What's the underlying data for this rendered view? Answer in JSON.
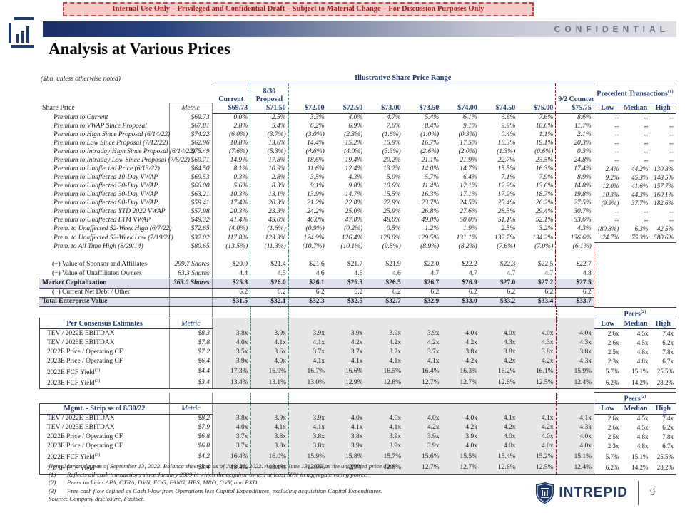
{
  "banner": {
    "text": "Internal Use Only – Privileged and Confidential Draft – Subject to Material Change – For Discussion Purposes Only"
  },
  "header": {
    "confidential": "CONFIDENTIAL",
    "title": "Analysis at Various Prices"
  },
  "colors": {
    "navy": "#203a6b",
    "green_dash": "#2e9d77",
    "red_dash": "#c00000",
    "banner_bg": "#f8caca",
    "banner_text": "#9e1b1b",
    "total_row_bg": "#dee1ed",
    "section_bg": "#e7e7e9"
  },
  "table": {
    "units_note": "($bn, unless otherwise noted)",
    "range_title": "Illustrative Share Price Range",
    "headers": {
      "current": "Current",
      "proposal_l1": "8/30",
      "proposal_l2": "Proposal",
      "counter": "9/2 Counter",
      "precedent": "Precedent Transactions",
      "precedent_sup": "(1)",
      "peers": "Peers",
      "peers_sup": "(2)",
      "low": "Low",
      "median": "Median",
      "high": "High",
      "metric": "Metric",
      "share_price_label": "Share Price"
    },
    "prices": [
      "$69.73",
      "$71.50",
      "$72.00",
      "$72.50",
      "$73.00",
      "$73.50",
      "$74.00",
      "$74.50",
      "$75.00",
      "$75.75"
    ],
    "premium_rows": [
      {
        "label": "Premium to Current",
        "metric": "$69.73",
        "values": [
          "0.0%",
          "2.5%",
          "3.3%",
          "4.0%",
          "4.7%",
          "5.4%",
          "6.1%",
          "6.8%",
          "7.6%",
          "8.6%"
        ],
        "peers": [
          "--",
          "--",
          "--"
        ]
      },
      {
        "label": "Premium to VWAP Since Proposal",
        "metric": "$67.81",
        "values": [
          "2.8%",
          "5.4%",
          "6.2%",
          "6.9%",
          "7.6%",
          "8.4%",
          "9.1%",
          "9.9%",
          "10.6%",
          "11.7%"
        ],
        "peers": [
          "--",
          "--",
          "--"
        ]
      },
      {
        "label": "Premium to High Since Proposal (6/14/22)",
        "metric": "$74.22",
        "values": [
          "(6.0%)",
          "(3.7%)",
          "(3.0%)",
          "(2.3%)",
          "(1.6%)",
          "(1.0%)",
          "(0.3%)",
          "0.4%",
          "1.1%",
          "2.1%"
        ],
        "peers": [
          "--",
          "--",
          "--"
        ]
      },
      {
        "label": "Premium to Low Since Proposal (7/12/22)",
        "metric": "$62.96",
        "values": [
          "10.8%",
          "13.6%",
          "14.4%",
          "15.2%",
          "15.9%",
          "16.7%",
          "17.5%",
          "18.3%",
          "19.1%",
          "20.3%"
        ],
        "peers": [
          "--",
          "--",
          "--"
        ]
      },
      {
        "label": "Premium to Intraday High Since Proposal (6/14/22)",
        "metric": "$75.49",
        "values": [
          "(7.6%)",
          "(5.3%)",
          "(4.6%)",
          "(4.0%)",
          "(3.3%)",
          "(2.6%)",
          "(2.0%)",
          "(1.3%)",
          "(0.6%)",
          "0.3%"
        ],
        "peers": [
          "--",
          "--",
          "--"
        ]
      },
      {
        "label": "Premium to Intraday Low Since Proposal (7/6/22)",
        "metric": "$60.71",
        "values": [
          "14.9%",
          "17.8%",
          "18.6%",
          "19.4%",
          "20.2%",
          "21.1%",
          "21.9%",
          "22.7%",
          "23.5%",
          "24.8%"
        ],
        "peers": [
          "--",
          "--",
          "--"
        ]
      },
      {
        "label": "Premium to Unaffected Price (6/13/22)",
        "metric": "$64.50",
        "values": [
          "8.1%",
          "10.9%",
          "11.6%",
          "12.4%",
          "13.2%",
          "14.0%",
          "14.7%",
          "15.5%",
          "16.3%",
          "17.4%"
        ],
        "peers": [
          "2.4%",
          "44.2%",
          "130.8%"
        ]
      },
      {
        "label": "Premium to Unaffected 10-Day VWAP",
        "metric": "$69.53",
        "values": [
          "0.3%",
          "2.8%",
          "3.5%",
          "4.3%",
          "5.0%",
          "5.7%",
          "6.4%",
          "7.1%",
          "7.9%",
          "8.9%"
        ],
        "peers": [
          "9.2%",
          "45.3%",
          "148.5%"
        ]
      },
      {
        "label": "Premium to Unaffected 20-Day VWAP",
        "metric": "$66.00",
        "values": [
          "5.6%",
          "8.3%",
          "9.1%",
          "9.8%",
          "10.6%",
          "11.4%",
          "12.1%",
          "12.9%",
          "13.6%",
          "14.8%"
        ],
        "peers": [
          "12.0%",
          "41.6%",
          "157.7%"
        ]
      },
      {
        "label": "Premium to Unaffected 30-Day VWAP",
        "metric": "$63.21",
        "values": [
          "10.3%",
          "13.1%",
          "13.9%",
          "14.7%",
          "15.5%",
          "16.3%",
          "17.1%",
          "17.9%",
          "18.7%",
          "19.8%"
        ],
        "peers": [
          "10.3%",
          "44.3%",
          "160.1%"
        ]
      },
      {
        "label": "Premium to Unaffected 90-Day VWAP",
        "metric": "$59.41",
        "values": [
          "17.4%",
          "20.3%",
          "21.2%",
          "22.0%",
          "22.9%",
          "23.7%",
          "24.5%",
          "25.4%",
          "26.2%",
          "27.5%"
        ],
        "peers": [
          "(9.9%)",
          "37.7%",
          "182.6%"
        ]
      },
      {
        "label": "Premium to Unaffected YTD 2022 VWAP",
        "metric": "$57.98",
        "values": [
          "20.3%",
          "23.3%",
          "24.2%",
          "25.0%",
          "25.9%",
          "26.8%",
          "27.6%",
          "28.5%",
          "29.4%",
          "30.7%"
        ],
        "peers": [
          "--",
          "--",
          "--"
        ]
      },
      {
        "label": "Premium to Unaffected LTM VWAP",
        "metric": "$49.32",
        "values": [
          "41.4%",
          "45.0%",
          "46.0%",
          "47.0%",
          "48.0%",
          "49.0%",
          "50.0%",
          "51.1%",
          "52.1%",
          "53.6%"
        ],
        "peers": [
          "--",
          "--",
          "--"
        ]
      },
      {
        "label": "Prem. to Unaffected 52-Week High (6/7/22)",
        "metric": "$72.65",
        "values": [
          "(4.0%)",
          "(1.6%)",
          "(0.9%)",
          "(0.2%)",
          "0.5%",
          "1.2%",
          "1.9%",
          "2.5%",
          "3.2%",
          "4.3%"
        ],
        "peers": [
          "(80.8%)",
          "6.3%",
          "42.5%"
        ]
      },
      {
        "label": "Prem. to Unaffected 52-Week Low (7/19/21)",
        "metric": "$32.02",
        "values": [
          "117.8%",
          "123.3%",
          "124.9%",
          "126.4%",
          "128.0%",
          "129.5%",
          "131.1%",
          "132.7%",
          "134.2%",
          "136.6%"
        ],
        "peers": [
          "24.7%",
          "75.3%",
          "580.6%"
        ]
      },
      {
        "label": "Prem. to All Time High (8/29/14)",
        "metric": "$80.65",
        "values": [
          "(13.5%)",
          "(11.3%)",
          "(10.7%)",
          "(10.1%)",
          "(9.5%)",
          "(8.9%)",
          "(8.2%)",
          "(7.6%)",
          "(7.0%)",
          "(6.1%)"
        ],
        "peers": [
          "",
          "",
          ""
        ]
      }
    ],
    "value_rows": [
      {
        "label": "(+) Value of Sponsor and Affiliates",
        "metric": "299.7 Shares",
        "values": [
          "$20.9",
          "$21.4",
          "$21.6",
          "$21.7",
          "$21.9",
          "$22.0",
          "$22.2",
          "$22.3",
          "$22.5",
          "$22.7"
        ],
        "style": "plain"
      },
      {
        "label": "(+) Value of Unaffiliated Owners",
        "metric": "63.3 Shares",
        "values": [
          "4.4",
          "4.5",
          "4.6",
          "4.6",
          "4.6",
          "4.7",
          "4.7",
          "4.7",
          "4.7",
          "4.8"
        ],
        "style": "plain"
      },
      {
        "label": "Market Capitalization",
        "metric": "363.0 Shares",
        "values": [
          "$25.3",
          "$26.0",
          "$26.1",
          "$26.3",
          "$26.5",
          "$26.7",
          "$26.9",
          "$27.0",
          "$27.2",
          "$27.5"
        ],
        "style": "total"
      },
      {
        "label": "(+) Current Net Debt / Other",
        "metric": "",
        "values": [
          "6.2",
          "6.2",
          "6.2",
          "6.2",
          "6.2",
          "6.2",
          "6.2",
          "6.2",
          "6.2",
          "6.2"
        ],
        "style": "plain"
      },
      {
        "label": "Total Enterprise Value",
        "metric": "",
        "values": [
          "$31.5",
          "$32.1",
          "$32.3",
          "$32.5",
          "$32.7",
          "$32.9",
          "$33.0",
          "$33.2",
          "$33.4",
          "$33.7"
        ],
        "style": "total"
      }
    ],
    "consensus": {
      "header": "Per Consensus Estimates",
      "rows": [
        {
          "label": "TEV / 2022E EBITDAX",
          "sup": "",
          "metric": "$8.3",
          "values": [
            "3.8x",
            "3.9x",
            "3.9x",
            "3.9x",
            "3.9x",
            "3.9x",
            "4.0x",
            "4.0x",
            "4.0x",
            "4.0x"
          ],
          "peers": [
            "2.6x",
            "4.5x",
            "7.4x"
          ]
        },
        {
          "label": "TEV / 2023E EBITDAX",
          "sup": "",
          "metric": "$7.8",
          "values": [
            "4.0x",
            "4.1x",
            "4.1x",
            "4.2x",
            "4.2x",
            "4.2x",
            "4.2x",
            "4.3x",
            "4.3x",
            "4.3x"
          ],
          "peers": [
            "2.6x",
            "4.5x",
            "6.2x"
          ]
        },
        {
          "label": "2022E Price / Operating CF",
          "sup": "",
          "metric": "$7.2",
          "values": [
            "3.5x",
            "3.6x",
            "3.7x",
            "3.7x",
            "3.7x",
            "3.7x",
            "3.8x",
            "3.8x",
            "3.8x",
            "3.8x"
          ],
          "peers": [
            "2.5x",
            "4.8x",
            "7.8x"
          ]
        },
        {
          "label": "2023E Price / Operating CF",
          "sup": "",
          "metric": "$6.4",
          "values": [
            "3.9x",
            "4.0x",
            "4.1x",
            "4.1x",
            "4.1x",
            "4.1x",
            "4.2x",
            "4.2x",
            "4.2x",
            "4.3x"
          ],
          "peers": [
            "2.3x",
            "4.8x",
            "6.7x"
          ]
        },
        {
          "label": "2022E FCF Yield",
          "sup": "(3)",
          "metric": "$4.4",
          "values": [
            "17.3%",
            "16.9%",
            "16.7%",
            "16.6%",
            "16.5%",
            "16.4%",
            "16.3%",
            "16.2%",
            "16.1%",
            "15.9%"
          ],
          "peers": [
            "5.7%",
            "15.1%",
            "25.5%"
          ]
        },
        {
          "label": "2023E FCF Yield",
          "sup": "(3)",
          "metric": "$3.4",
          "values": [
            "13.4%",
            "13.1%",
            "13.0%",
            "12.9%",
            "12.8%",
            "12.7%",
            "12.7%",
            "12.6%",
            "12.5%",
            "12.4%"
          ],
          "peers": [
            "6.2%",
            "14.2%",
            "28.2%"
          ]
        }
      ]
    },
    "mgmt": {
      "header": "Mgmt. - Strip as of 8/30/22",
      "rows": [
        {
          "label": "TEV / 2022E EBITDAX",
          "sup": "",
          "metric": "$8.2",
          "values": [
            "3.8x",
            "3.9x",
            "3.9x",
            "4.0x",
            "4.0x",
            "4.0x",
            "4.0x",
            "4.1x",
            "4.1x",
            "4.1x"
          ],
          "peers": [
            "2.6x",
            "4.5x",
            "7.4x"
          ]
        },
        {
          "label": "TEV / 2023E EBITDAX",
          "sup": "",
          "metric": "$7.9",
          "values": [
            "4.0x",
            "4.1x",
            "4.1x",
            "4.1x",
            "4.1x",
            "4.2x",
            "4.2x",
            "4.2x",
            "4.2x",
            "4.3x"
          ],
          "peers": [
            "2.6x",
            "4.5x",
            "6.2x"
          ]
        },
        {
          "label": "2022E Price / Operating CF",
          "sup": "",
          "metric": "$6.8",
          "values": [
            "3.7x",
            "3.8x",
            "3.8x",
            "3.8x",
            "3.9x",
            "3.9x",
            "3.9x",
            "4.0x",
            "4.0x",
            "4.0x"
          ],
          "peers": [
            "2.5x",
            "4.8x",
            "7.8x"
          ]
        },
        {
          "label": "2023E Price / Operating CF",
          "sup": "",
          "metric": "$6.8",
          "values": [
            "3.7x",
            "3.8x",
            "3.8x",
            "3.9x",
            "3.9x",
            "3.9x",
            "4.0x",
            "4.0x",
            "4.0x",
            "4.0x"
          ],
          "peers": [
            "2.3x",
            "4.8x",
            "6.7x"
          ]
        },
        {
          "label": "2022E FCF Yield",
          "sup": "(3)",
          "metric": "$4.2",
          "values": [
            "16.4%",
            "16.0%",
            "15.9%",
            "15.8%",
            "15.7%",
            "15.6%",
            "15.5%",
            "15.4%",
            "15.2%",
            "15.1%"
          ],
          "peers": [
            "5.7%",
            "15.1%",
            "25.5%"
          ]
        },
        {
          "label": "2023E FCF Yield",
          "sup": "(3)",
          "metric": "$3.4",
          "values": [
            "13.4%",
            "13.1%",
            "13.0%",
            "12.9%",
            "12.8%",
            "12.7%",
            "12.7%",
            "12.6%",
            "12.5%",
            "12.4%"
          ],
          "peers": [
            "6.2%",
            "14.2%",
            "28.2%"
          ]
        }
      ]
    }
  },
  "footnotes": {
    "note": "Note: Market data as of September 13, 2022. Balance sheet data as of June 30, 2022. Assumes June 13, 2022 as the unaffected price date.",
    "items": [
      {
        "tag": "(1)",
        "text": "Reflects all-cash transactions since January 2009 in which the acquiror owned at least 50% in aggregate voting power."
      },
      {
        "tag": "(2)",
        "text": "Peers includes APA, CTRA, DVN, EOG, FANG, HES, MRO, OVV, and PXD."
      },
      {
        "tag": "(3)",
        "text": "Free cash flow defined as Cash Flow from Operations less Capital Expenditures, excluding acquisition Capital Expenditures."
      }
    ],
    "source": "Source: Company disclosure, FactSet."
  },
  "footer": {
    "brand": "INTREPID",
    "page_number": "9"
  }
}
